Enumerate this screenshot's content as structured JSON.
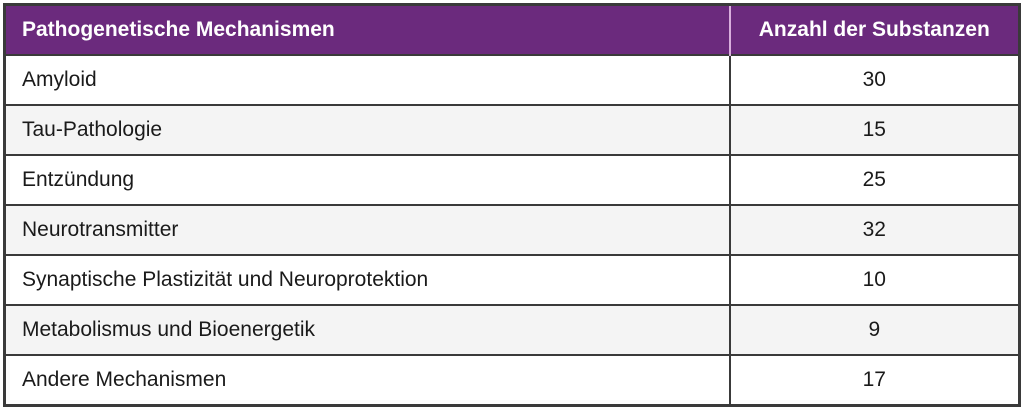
{
  "chart_data": {
    "type": "table",
    "columns": [
      "Pathogenetische Mechanismen",
      "Anzahl der Substanzen"
    ],
    "categories": [
      "Amyloid",
      "Tau-Pathologie",
      "Entzündung",
      "Neurotransmitter",
      "Synaptische Plastizität und Neuroprotektion",
      "Metabolismus und Bioenergetik",
      "Andere Mechanismen"
    ],
    "values": [
      30,
      15,
      25,
      32,
      10,
      9,
      17
    ]
  },
  "table": {
    "columns": [
      {
        "label": "Pathogenetische Mechanismen"
      },
      {
        "label": "Anzahl der Substanzen"
      }
    ],
    "rows": [
      {
        "mechanism": "Amyloid",
        "count": "30"
      },
      {
        "mechanism": "Tau-Pathologie",
        "count": "15"
      },
      {
        "mechanism": "Entzündung",
        "count": "25"
      },
      {
        "mechanism": "Neurotransmitter",
        "count": "32"
      },
      {
        "mechanism": "Synaptische Plastizität und Neuroprotektion",
        "count": "10"
      },
      {
        "mechanism": "Metabolismus und Bioenergetik",
        "count": "9"
      },
      {
        "mechanism": "Andere Mechanismen",
        "count": "17"
      }
    ],
    "colors": {
      "header_bg": "#6B2A7D",
      "header_text": "#FFFFFF",
      "row_alt_bg": "#F4F4F4",
      "border_dark": "#3A3A3A",
      "header_divider": "#D9AEDD"
    }
  }
}
